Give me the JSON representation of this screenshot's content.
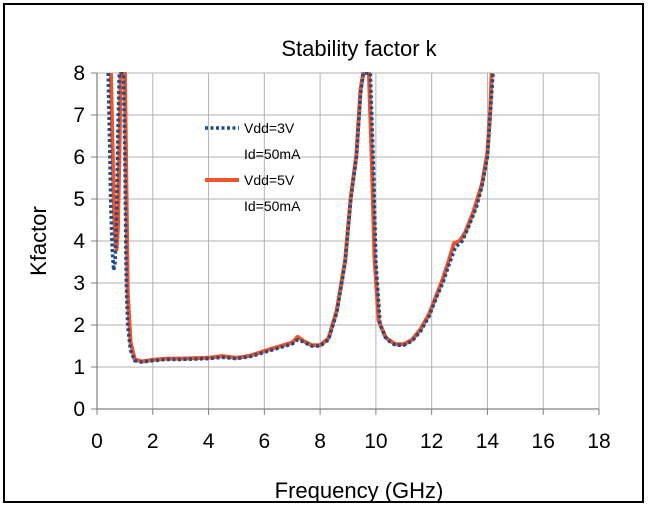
{
  "chart_data": {
    "type": "line",
    "title": "Stability factor k",
    "xlabel": "Frequency (GHz)",
    "ylabel": "Kfactor",
    "xlim": [
      0,
      18
    ],
    "ylim": [
      0,
      8
    ],
    "xticks": [
      "0",
      "2",
      "4",
      "6",
      "8",
      "10",
      "12",
      "14",
      "16",
      "18"
    ],
    "yticks": [
      "0",
      "1",
      "2",
      "3",
      "4",
      "5",
      "6",
      "7",
      "8"
    ],
    "grid": true,
    "legend_position": "upper-left inside plot",
    "series": [
      {
        "name": "Vdd=3V\nId=50mA",
        "name_lines": [
          "Vdd=3V",
          "Id=50mA"
        ],
        "color": "#1F4E8C",
        "style": "dotted",
        "points": [
          [
            0.4,
            8.0
          ],
          [
            0.45,
            6.5
          ],
          [
            0.5,
            4.8
          ],
          [
            0.55,
            3.8
          ],
          [
            0.6,
            3.3
          ],
          [
            0.65,
            3.5
          ],
          [
            0.7,
            4.5
          ],
          [
            0.75,
            6.5
          ],
          [
            0.8,
            8.0
          ],
          [
            0.95,
            8.0
          ],
          [
            1.0,
            6.0
          ],
          [
            1.05,
            3.0
          ],
          [
            1.1,
            2.0
          ],
          [
            1.2,
            1.4
          ],
          [
            1.35,
            1.15
          ],
          [
            1.6,
            1.12
          ],
          [
            2.0,
            1.15
          ],
          [
            2.5,
            1.18
          ],
          [
            3.0,
            1.18
          ],
          [
            3.5,
            1.19
          ],
          [
            4.0,
            1.2
          ],
          [
            4.5,
            1.23
          ],
          [
            5.0,
            1.2
          ],
          [
            5.5,
            1.25
          ],
          [
            6.0,
            1.35
          ],
          [
            6.5,
            1.45
          ],
          [
            7.0,
            1.55
          ],
          [
            7.2,
            1.65
          ],
          [
            7.4,
            1.6
          ],
          [
            7.7,
            1.5
          ],
          [
            8.0,
            1.5
          ],
          [
            8.3,
            1.65
          ],
          [
            8.6,
            2.3
          ],
          [
            8.9,
            3.5
          ],
          [
            9.1,
            5.0
          ],
          [
            9.3,
            6.0
          ],
          [
            9.45,
            7.5
          ],
          [
            9.55,
            8.0
          ],
          [
            9.8,
            8.0
          ],
          [
            9.9,
            6.0
          ],
          [
            10.0,
            3.5
          ],
          [
            10.15,
            2.0
          ],
          [
            10.4,
            1.65
          ],
          [
            10.7,
            1.52
          ],
          [
            11.0,
            1.52
          ],
          [
            11.3,
            1.62
          ],
          [
            11.6,
            1.85
          ],
          [
            11.9,
            2.2
          ],
          [
            12.2,
            2.7
          ],
          [
            12.4,
            3.0
          ],
          [
            12.6,
            3.4
          ],
          [
            12.85,
            3.85
          ],
          [
            13.1,
            4.0
          ],
          [
            13.3,
            4.3
          ],
          [
            13.6,
            4.8
          ],
          [
            13.8,
            5.3
          ],
          [
            14.0,
            6.0
          ],
          [
            14.1,
            7.0
          ],
          [
            14.2,
            8.0
          ]
        ]
      },
      {
        "name": "Vdd=5V\nId=50mA",
        "name_lines": [
          "Vdd=5V",
          "Id=50mA"
        ],
        "color": "#F0542A",
        "style": "solid",
        "points": [
          [
            0.5,
            8.0
          ],
          [
            0.55,
            6.5
          ],
          [
            0.6,
            5.0
          ],
          [
            0.65,
            4.1
          ],
          [
            0.7,
            3.8
          ],
          [
            0.75,
            4.3
          ],
          [
            0.8,
            6.0
          ],
          [
            0.85,
            8.0
          ],
          [
            1.0,
            8.0
          ],
          [
            1.05,
            5.5
          ],
          [
            1.1,
            2.8
          ],
          [
            1.2,
            1.6
          ],
          [
            1.35,
            1.18
          ],
          [
            1.6,
            1.13
          ],
          [
            2.0,
            1.17
          ],
          [
            2.5,
            1.2
          ],
          [
            3.0,
            1.2
          ],
          [
            3.5,
            1.21
          ],
          [
            4.0,
            1.22
          ],
          [
            4.5,
            1.26
          ],
          [
            5.0,
            1.22
          ],
          [
            5.5,
            1.27
          ],
          [
            6.0,
            1.38
          ],
          [
            6.5,
            1.48
          ],
          [
            7.0,
            1.58
          ],
          [
            7.2,
            1.72
          ],
          [
            7.4,
            1.62
          ],
          [
            7.7,
            1.52
          ],
          [
            8.0,
            1.52
          ],
          [
            8.3,
            1.68
          ],
          [
            8.6,
            2.35
          ],
          [
            8.9,
            3.55
          ],
          [
            9.1,
            5.05
          ],
          [
            9.3,
            6.05
          ],
          [
            9.45,
            7.6
          ],
          [
            9.55,
            8.0
          ],
          [
            9.75,
            8.0
          ],
          [
            9.85,
            6.0
          ],
          [
            9.95,
            3.6
          ],
          [
            10.1,
            2.1
          ],
          [
            10.35,
            1.7
          ],
          [
            10.7,
            1.54
          ],
          [
            11.0,
            1.54
          ],
          [
            11.3,
            1.65
          ],
          [
            11.6,
            1.9
          ],
          [
            11.9,
            2.25
          ],
          [
            12.2,
            2.75
          ],
          [
            12.4,
            3.1
          ],
          [
            12.6,
            3.5
          ],
          [
            12.8,
            3.95
          ],
          [
            13.0,
            4.0
          ],
          [
            13.2,
            4.2
          ],
          [
            13.5,
            4.7
          ],
          [
            13.8,
            5.35
          ],
          [
            14.0,
            6.1
          ],
          [
            14.1,
            7.1
          ],
          [
            14.15,
            8.0
          ]
        ]
      }
    ]
  }
}
